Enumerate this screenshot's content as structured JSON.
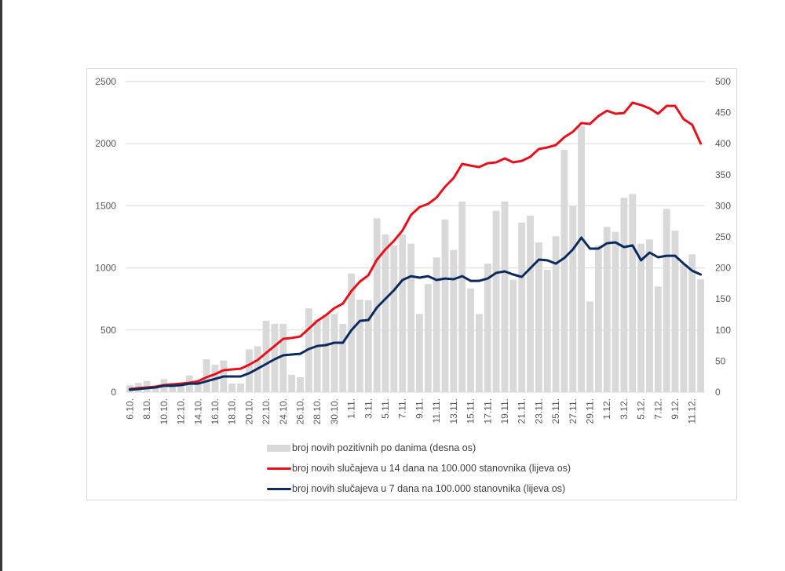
{
  "chart_data": {
    "type": "bar+line",
    "title": "",
    "left_axis": {
      "ticks": [
        "0",
        "500",
        "1000",
        "1500",
        "2000",
        "2500"
      ],
      "range": [
        0,
        2500
      ]
    },
    "right_axis": {
      "ticks": [
        "0",
        "50",
        "100",
        "150",
        "200",
        "250",
        "300",
        "350",
        "400",
        "450",
        "500"
      ],
      "range": [
        0,
        500
      ]
    },
    "grid": true,
    "legend_position": "bottom",
    "categories": [
      "6.10.",
      "7.10.",
      "8.10.",
      "9.10.",
      "10.10.",
      "11.10.",
      "12.10.",
      "13.10.",
      "14.10.",
      "15.10.",
      "16.10.",
      "17.10.",
      "18.10.",
      "19.10.",
      "20.10.",
      "21.10.",
      "22.10.",
      "23.10.",
      "24.10.",
      "25.10.",
      "26.10.",
      "27.10.",
      "28.10.",
      "29.10.",
      "30.10.",
      "31.10.",
      "1.11.",
      "2.11.",
      "3.11.",
      "4.11.",
      "5.11.",
      "6.11.",
      "7.11.",
      "8.11.",
      "9.11.",
      "10.11.",
      "11.11.",
      "12.11.",
      "13.11.",
      "14.11.",
      "15.11.",
      "16.11.",
      "17.11.",
      "18.11.",
      "19.11.",
      "20.11.",
      "21.11.",
      "22.11.",
      "23.11.",
      "24.11.",
      "25.11.",
      "26.11.",
      "27.11.",
      "28.11.",
      "29.11.",
      "30.11.",
      "1.12.",
      "2.12.",
      "3.12.",
      "4.12.",
      "5.12.",
      "6.12.",
      "7.12.",
      "8.12.",
      "9.12.",
      "10.12.",
      "11.12.",
      "12.12."
    ],
    "tick_labels": [
      "6.10.",
      "8.10.",
      "10.10.",
      "12.10.",
      "14.10.",
      "16.10.",
      "18.10.",
      "20.10.",
      "22.10.",
      "24.10.",
      "26.10.",
      "28.10.",
      "30.10.",
      "1.11.",
      "3.11.",
      "5.11.",
      "7.11.",
      "9.11.",
      "11.11.",
      "13.11.",
      "15.11.",
      "17.11.",
      "19.11.",
      "21.11.",
      "23.11.",
      "25.11.",
      "27.11.",
      "29.11.",
      "1.12.",
      "3.12.",
      "5.12.",
      "7.12.",
      "9.12.",
      "11.12."
    ],
    "series": [
      {
        "name": "broj novih pozitivnih po danima (desna os)",
        "kind": "bar",
        "axis": "right",
        "color": "#d9d9d9",
        "values": [
          11,
          15,
          18,
          10,
          21,
          13,
          13,
          27,
          16,
          53,
          44,
          51,
          14,
          14,
          69,
          74,
          115,
          110,
          110,
          28,
          24,
          135,
          117,
          125,
          126,
          110,
          191,
          149,
          148,
          280,
          254,
          236,
          254,
          239,
          126,
          174,
          217,
          278,
          229,
          307,
          167,
          126,
          207,
          292,
          307,
          181,
          273,
          284,
          241,
          197,
          251,
          390,
          300,
          428,
          146,
          236,
          266,
          258,
          313,
          319,
          239,
          246,
          170,
          295,
          260,
          206,
          222,
          182
        ]
      },
      {
        "name": "broj novih slučajeva u 14 dana na 100.000 stanovnika (lijeva os)",
        "kind": "line",
        "axis": "left",
        "color": "#e8101a",
        "values": [
          25,
          32,
          38,
          44,
          57,
          63,
          69,
          76,
          88,
          120,
          145,
          177,
          183,
          189,
          221,
          259,
          316,
          372,
          429,
          436,
          448,
          511,
          574,
          619,
          676,
          713,
          814,
          890,
          941,
          1067,
          1149,
          1218,
          1301,
          1427,
          1490,
          1515,
          1566,
          1654,
          1723,
          1837,
          1824,
          1812,
          1843,
          1850,
          1881,
          1850,
          1862,
          1894,
          1957,
          1970,
          1989,
          2052,
          2096,
          2166,
          2159,
          2222,
          2266,
          2241,
          2247,
          2330,
          2311,
          2285,
          2241,
          2304,
          2304,
          2197,
          2153,
          2001
        ]
      },
      {
        "name": "broj novih slučajeva u 7 dana na 100.000 stanovnika (lijeva os)",
        "kind": "line",
        "axis": "left",
        "color": "#0c2a5e",
        "values": [
          19,
          25,
          32,
          38,
          51,
          51,
          57,
          69,
          69,
          88,
          107,
          126,
          126,
          126,
          152,
          189,
          227,
          265,
          297,
          303,
          309,
          347,
          372,
          379,
          398,
          398,
          499,
          574,
          581,
          682,
          751,
          821,
          903,
          934,
          922,
          934,
          903,
          915,
          909,
          934,
          896,
          896,
          915,
          960,
          972,
          947,
          928,
          997,
          1067,
          1061,
          1035,
          1080,
          1149,
          1244,
          1155,
          1155,
          1199,
          1206,
          1168,
          1181,
          1061,
          1124,
          1086,
          1098,
          1098,
          1035,
          978,
          947
        ]
      }
    ]
  },
  "legend": {
    "items": [
      "broj novih pozitivnih po danima (desna os)",
      "broj novih slučajeva u 14 dana na 100.000 stanovnika (lijeva os)",
      "broj novih slučajeva u 7 dana na 100.000 stanovnika (lijeva os)"
    ]
  }
}
